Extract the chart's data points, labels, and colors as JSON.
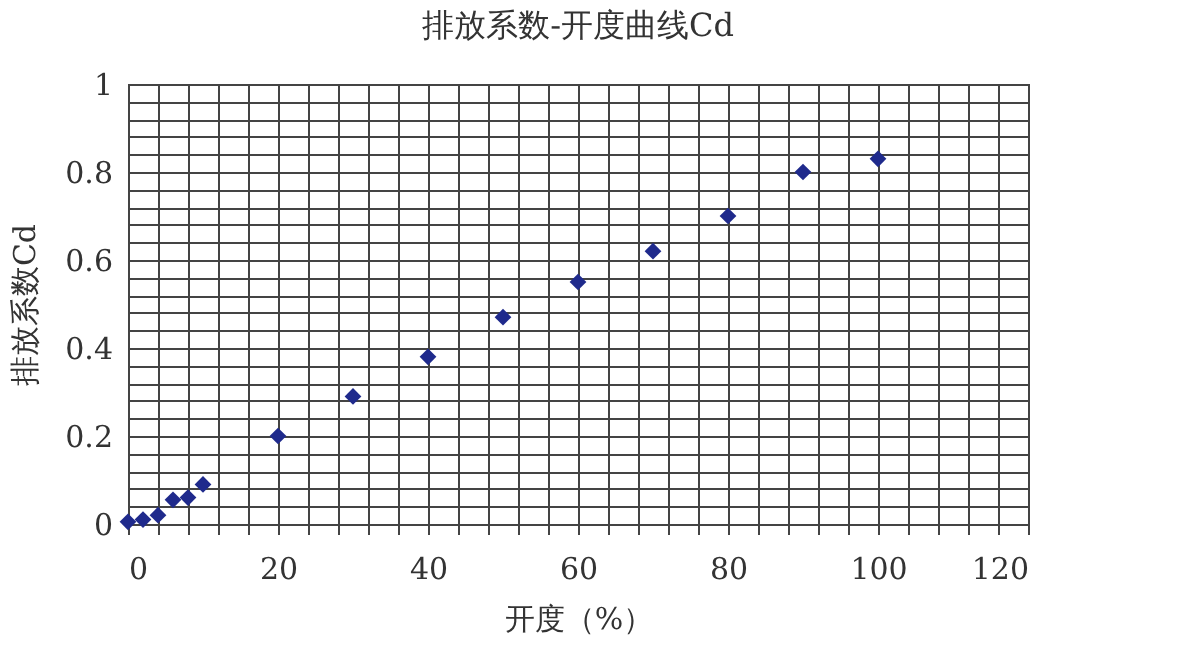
{
  "chart_data": {
    "type": "scatter",
    "title": "排放系数-开度曲线Cd",
    "xlabel": "开度（%）",
    "ylabel": "排放系数Cd",
    "x": [
      0,
      2,
      4,
      6,
      8,
      10,
      20,
      30,
      40,
      50,
      60,
      70,
      80,
      90,
      100
    ],
    "series": [
      {
        "color": "#1f2a8c",
        "values": [
          0.005,
          0.01,
          0.02,
          0.055,
          0.06,
          0.09,
          0.2,
          0.29,
          0.38,
          0.47,
          0.55,
          0.62,
          0.7,
          0.8,
          0.83
        ]
      }
    ],
    "marker": "diamond",
    "grid": true,
    "xlim": [
      0,
      120
    ],
    "ylim": [
      0,
      1
    ],
    "xticks": [
      0,
      {
        "value": 4,
        "label": null
      },
      {
        "value": 8,
        "label": null
      },
      {
        "value": 12,
        "label": null
      },
      {
        "value": 16,
        "label": null
      },
      20,
      {
        "value": 24,
        "label": null
      },
      {
        "value": 28,
        "label": null
      },
      {
        "value": 32,
        "label": null
      },
      {
        "value": 36,
        "label": null
      },
      40,
      {
        "value": 44,
        "label": null
      },
      {
        "value": 48,
        "label": null
      },
      {
        "value": 52,
        "label": null
      },
      {
        "value": 56,
        "label": null
      },
      60,
      {
        "value": 64,
        "label": null
      },
      {
        "value": 68,
        "label": null
      },
      {
        "value": 72,
        "label": null
      },
      {
        "value": 76,
        "label": null
      },
      80,
      {
        "value": 84,
        "label": null
      },
      {
        "value": 88,
        "label": null
      },
      {
        "value": 92,
        "label": null
      },
      {
        "value": 96,
        "label": null
      },
      100,
      {
        "value": 104,
        "label": null
      },
      {
        "value": 108,
        "label": null
      },
      {
        "value": 112,
        "label": null
      },
      {
        "value": 116,
        "label": null
      },
      120
    ],
    "yticks": [
      0,
      {
        "value": 0.04,
        "label": null
      },
      {
        "value": 0.08,
        "label": null
      },
      {
        "value": 0.12,
        "label": null
      },
      {
        "value": 0.16,
        "label": null
      },
      0.2,
      {
        "value": 0.24,
        "label": null
      },
      {
        "value": 0.28,
        "label": null
      },
      {
        "value": 0.32,
        "label": null
      },
      {
        "value": 0.36,
        "label": null
      },
      0.4,
      {
        "value": 0.44,
        "label": null
      },
      {
        "value": 0.48,
        "label": null
      },
      {
        "value": 0.52,
        "label": null
      },
      {
        "value": 0.56,
        "label": null
      },
      0.6,
      {
        "value": 0.64,
        "label": null
      },
      {
        "value": 0.68,
        "label": null
      },
      {
        "value": 0.72,
        "label": null
      },
      {
        "value": 0.76,
        "label": null
      },
      0.8,
      {
        "value": 0.84,
        "label": null
      },
      {
        "value": 0.88,
        "label": null
      },
      {
        "value": 0.92,
        "label": null
      },
      {
        "value": 0.96,
        "label": null
      },
      1
    ]
  }
}
